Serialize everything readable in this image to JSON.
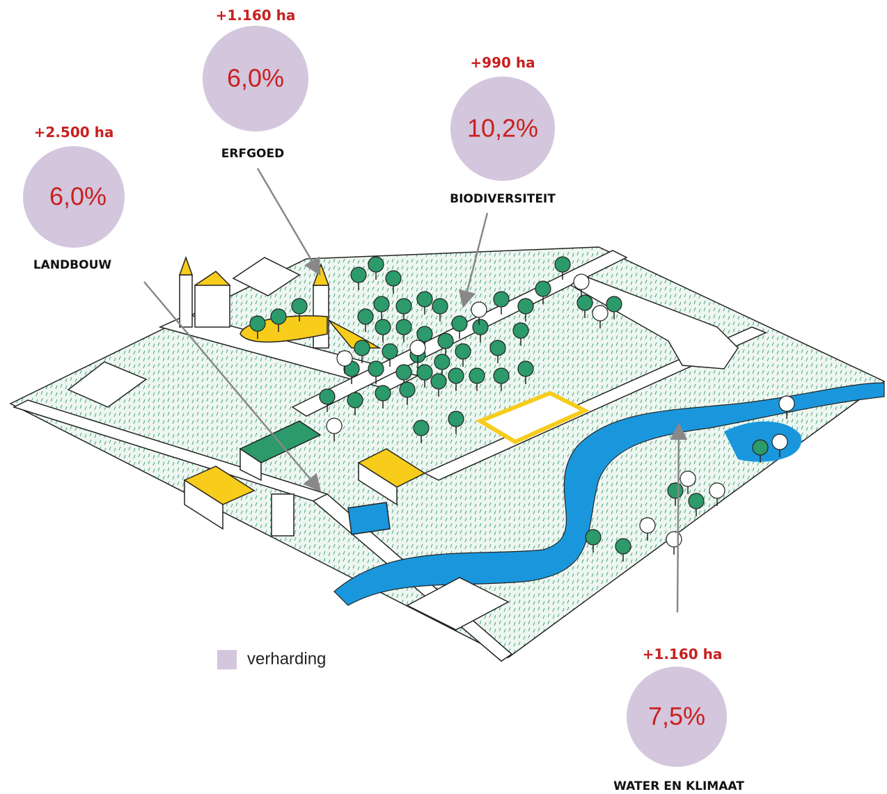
{
  "callouts": [
    {
      "area": "+1.160 ha",
      "share": "6,0%",
      "label": "ERFGOED"
    },
    {
      "area": "+2.500 ha",
      "share": "6,0%",
      "label": "LANDBOUW"
    },
    {
      "area": "+990 ha",
      "share": "10,2%",
      "label": "BIODIVERSITEIT"
    },
    {
      "area": "+1.160 ha",
      "share": "7,5%",
      "label": "WATER EN KLIMAAT"
    }
  ],
  "legend": {
    "label": "verharding"
  }
}
